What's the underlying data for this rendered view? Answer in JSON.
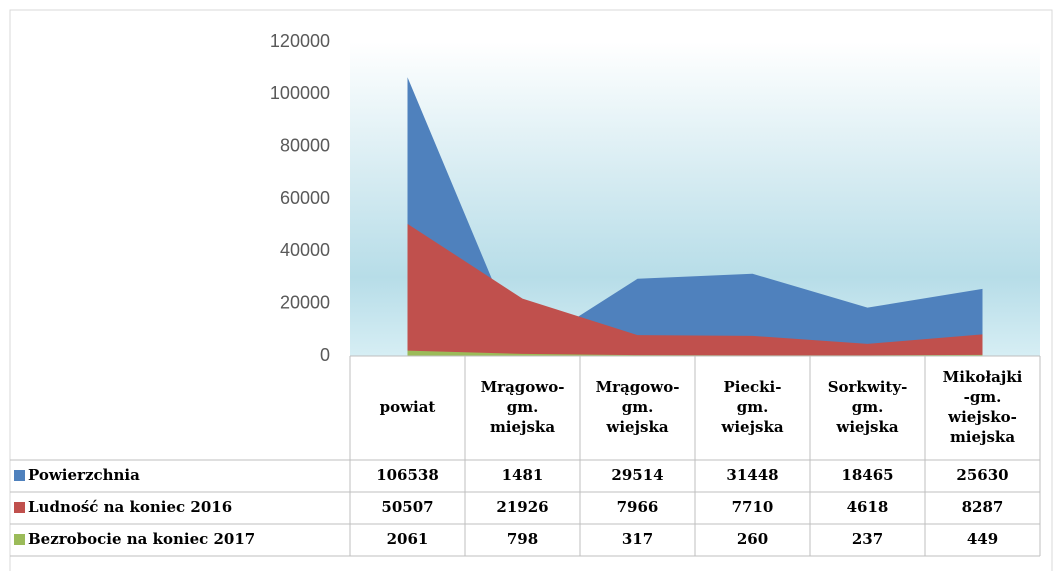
{
  "chart_data": {
    "type": "area",
    "categories": [
      [
        "powiat"
      ],
      [
        "Mrągowo-",
        "gm.",
        "miejska"
      ],
      [
        "Mrągowo-",
        "gm.",
        "wiejska"
      ],
      [
        "Piecki-",
        "gm.",
        "wiejska"
      ],
      [
        "Sorkwity-",
        "gm.",
        "wiejska"
      ],
      [
        "Mikołajki",
        "-gm.",
        "wiejsko-",
        "miejska"
      ]
    ],
    "series": [
      {
        "name": "Powierzchnia",
        "color": "#4f81bd",
        "values": [
          106538,
          1481,
          29514,
          31448,
          18465,
          25630
        ]
      },
      {
        "name": "Ludność na koniec 2016",
        "color": "#c0504d",
        "values": [
          50507,
          21926,
          7966,
          7710,
          4618,
          8287
        ]
      },
      {
        "name": "Bezrobocie na koniec 2017",
        "color": "#9bbb59",
        "values": [
          2061,
          798,
          317,
          260,
          237,
          449
        ]
      }
    ],
    "ylim": [
      0,
      120000
    ],
    "yticks": [
      0,
      20000,
      40000,
      60000,
      80000,
      100000,
      120000
    ],
    "grid": false
  }
}
